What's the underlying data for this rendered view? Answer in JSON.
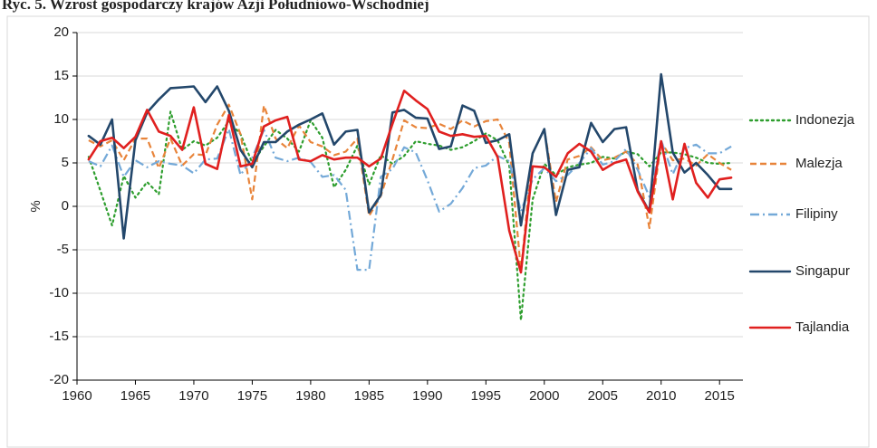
{
  "chart_data": {
    "type": "line",
    "title": "Ryc. 5. Wzrost gospodarczy krajów Azji Południowo-Wschodniej",
    "y_label": "%",
    "x": [
      1961,
      1962,
      1963,
      1964,
      1965,
      1966,
      1967,
      1968,
      1969,
      1970,
      1971,
      1972,
      1973,
      1974,
      1975,
      1976,
      1977,
      1978,
      1979,
      1980,
      1981,
      1982,
      1983,
      1984,
      1985,
      1986,
      1987,
      1988,
      1989,
      1990,
      1991,
      1992,
      1993,
      1994,
      1995,
      1996,
      1997,
      1998,
      1999,
      2000,
      2001,
      2002,
      2003,
      2004,
      2005,
      2006,
      2007,
      2008,
      2009,
      2010,
      2011,
      2012,
      2013,
      2014,
      2015,
      2016
    ],
    "series": [
      {
        "name": "Indonezja",
        "color": "#2e9e2e",
        "linestyle": "dotted",
        "values": [
          5.7,
          1.8,
          -2.2,
          3.5,
          1,
          2.8,
          1.4,
          10.9,
          6.5,
          7.5,
          7,
          7.9,
          9.8,
          8.3,
          5,
          6.9,
          8.8,
          7.8,
          6.3,
          9.9,
          7.9,
          2.2,
          4.2,
          7,
          2.5,
          5.9,
          4.9,
          5.8,
          7.5,
          7.2,
          7,
          6.5,
          6.8,
          7.5,
          8.4,
          7.6,
          4.7,
          -13.1,
          0.8,
          4.9,
          3.6,
          4.5,
          4.8,
          5,
          5.7,
          5.5,
          6.3,
          6,
          4.6,
          6.2,
          6.2,
          6,
          5.6,
          5,
          4.9,
          5
        ]
      },
      {
        "name": "Malezja",
        "color": "#e8843a",
        "linestyle": "dashed",
        "values": [
          7.6,
          6.9,
          7.6,
          5.3,
          7.8,
          7.8,
          4.4,
          7.8,
          4.7,
          6,
          5.9,
          9.4,
          11.7,
          8.3,
          0.8,
          11.6,
          7.8,
          6.7,
          9.3,
          7.4,
          6.9,
          5.9,
          6.3,
          7.8,
          -1.1,
          1.2,
          5.4,
          9.9,
          9.1,
          9,
          9.5,
          8.9,
          9.9,
          9.2,
          9.8,
          10,
          7.3,
          -7.4,
          6.1,
          8.9,
          0.5,
          5.4,
          5.8,
          6.8,
          5.3,
          5.6,
          6.3,
          4.8,
          -2.5,
          7.4,
          5.3,
          5.5,
          4.7,
          6,
          5,
          4.2
        ]
      },
      {
        "name": "Filipiny",
        "color": "#74a9d8",
        "linestyle": "dashdot",
        "values": [
          5.2,
          4.6,
          7,
          3.4,
          5.3,
          4.5,
          5.2,
          4.9,
          4.7,
          3.8,
          5.4,
          5.5,
          8.9,
          3.6,
          5.6,
          8.8,
          5.6,
          5.2,
          5.6,
          5.1,
          3.4,
          3.6,
          1.9,
          -7.3,
          -7.3,
          3.4,
          4.3,
          6.8,
          6.2,
          3,
          -0.6,
          0.3,
          2.1,
          4.4,
          4.7,
          5.8,
          5.2,
          -0.6,
          3.1,
          4.4,
          2.9,
          3.6,
          5,
          6.7,
          4.8,
          5.2,
          6.6,
          4.2,
          1.1,
          7.6,
          3.7,
          6.7,
          7.1,
          6.1,
          6.1,
          6.9
        ]
      },
      {
        "name": "Singapur",
        "color": "#23476b",
        "linestyle": "solid",
        "values": [
          8.1,
          7.1,
          10,
          -3.7,
          7.6,
          10.8,
          12.3,
          13.6,
          13.7,
          13.8,
          12,
          13.8,
          11,
          6.5,
          4.5,
          7.4,
          7.4,
          8.6,
          9.4,
          10,
          10.7,
          7.1,
          8.6,
          8.8,
          -0.7,
          1.3,
          10.8,
          11.1,
          10.2,
          10.1,
          6.6,
          6.9,
          11.6,
          11,
          7.3,
          7.6,
          8.3,
          -2.2,
          6.1,
          8.9,
          -1,
          4.2,
          4.5,
          9.6,
          7.4,
          8.9,
          9.1,
          1.8,
          -0.6,
          15.2,
          6.2,
          3.9,
          5,
          3.6,
          2,
          2
        ]
      },
      {
        "name": "Tajlandia",
        "color": "#e0201f",
        "linestyle": "solid",
        "values": [
          5.4,
          7.5,
          7.9,
          6.7,
          8,
          11.1,
          8.6,
          8.1,
          6.5,
          11.4,
          4.9,
          4.3,
          10.5,
          4.6,
          4.9,
          9.2,
          9.9,
          10.3,
          5.4,
          5.2,
          5.9,
          5.4,
          5.6,
          5.6,
          4.6,
          5.5,
          9.5,
          13.3,
          12.2,
          11.2,
          8.6,
          8.1,
          8.3,
          8,
          8.1,
          5.7,
          -2.8,
          -7.6,
          4.6,
          4.5,
          3.4,
          6.1,
          7.2,
          6.3,
          4.2,
          5,
          5.4,
          1.7,
          -0.7,
          7.5,
          0.8,
          7.2,
          2.7,
          1,
          3.1,
          3.3
        ]
      }
    ],
    "xlim": [
      1960,
      2017
    ],
    "xticks": [
      1960,
      1965,
      1970,
      1975,
      1980,
      1985,
      1990,
      1995,
      2000,
      2005,
      2010,
      2015
    ],
    "ylim": [
      -20,
      20
    ],
    "yticks": [
      -20,
      -15,
      -10,
      -5,
      0,
      5,
      10,
      15,
      20
    ],
    "grid": true,
    "legend": "right"
  }
}
